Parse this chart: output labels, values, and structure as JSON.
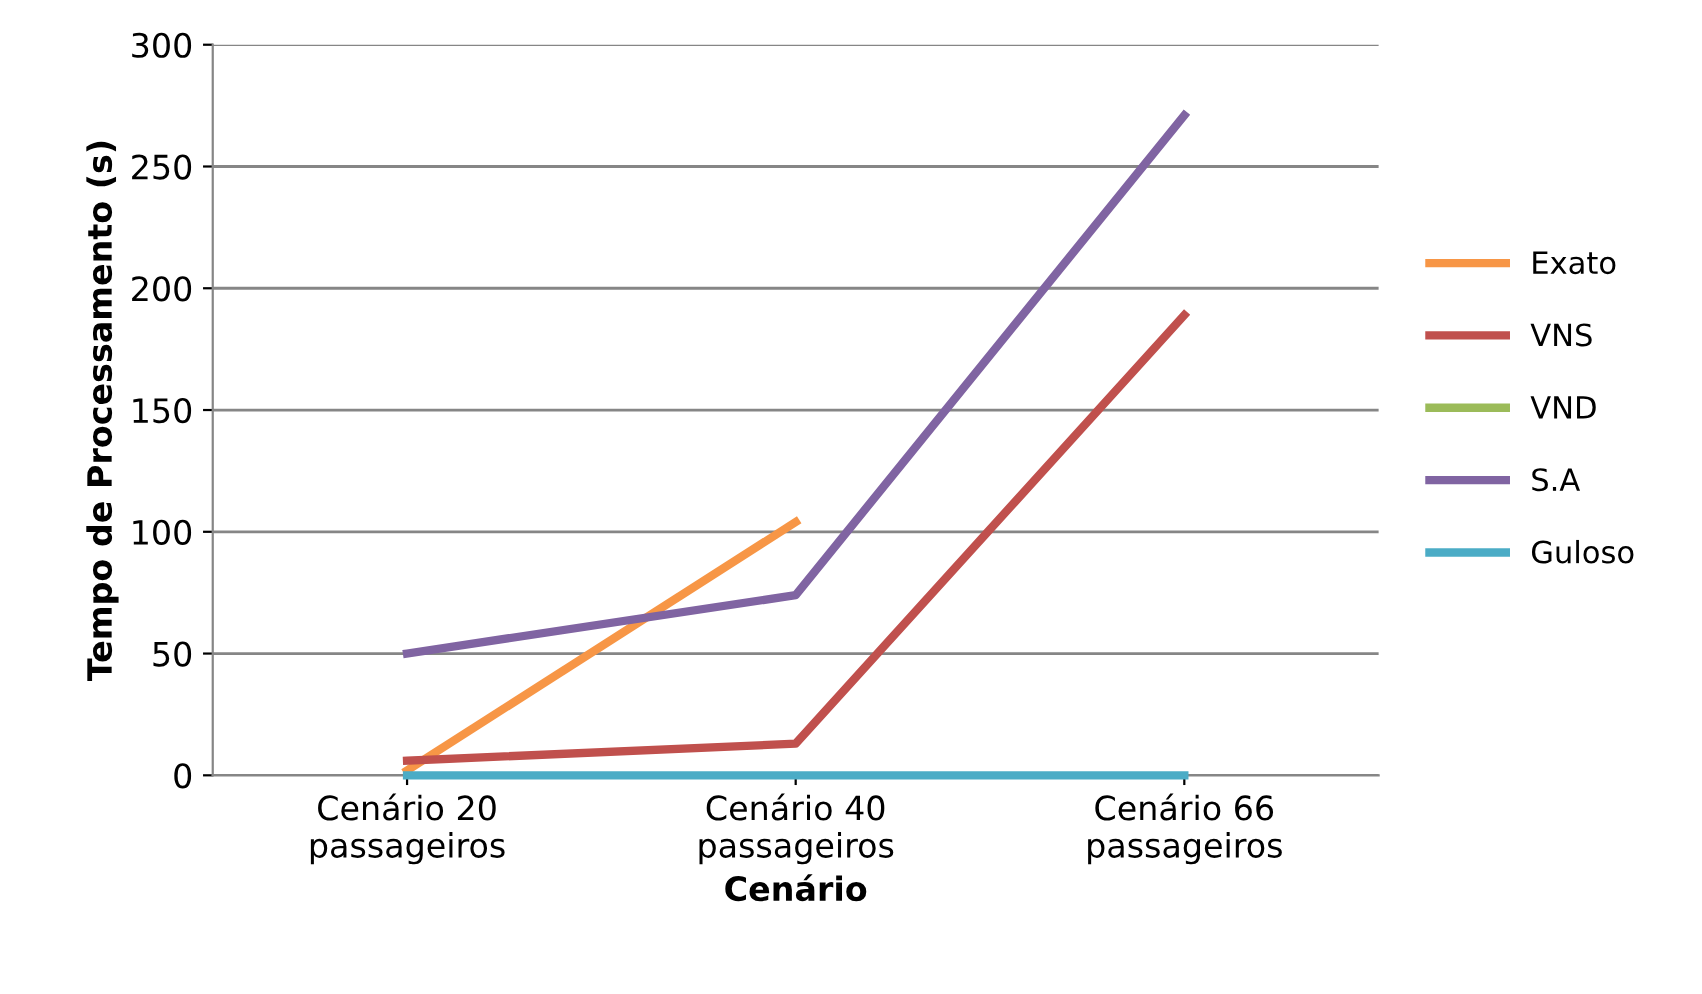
{
  "chart_data": {
    "type": "line",
    "xlabel": "Cenário",
    "ylabel": "Tempo de Processamento (s)",
    "categories": [
      "Cenário 20\npassageiros",
      "Cenário 40\npassageiros",
      "Cenário 66\npassageiros"
    ],
    "series": [
      {
        "name": "Exato",
        "color": "#f79646",
        "values": [
          2,
          104,
          null
        ]
      },
      {
        "name": "VNS",
        "color": "#c0504d",
        "values": [
          6,
          13,
          189
        ]
      },
      {
        "name": "VND",
        "color": "#9bbb59",
        "values": [
          null,
          null,
          null
        ]
      },
      {
        "name": "S.A",
        "color": "#8064a2",
        "values": [
          50,
          74,
          271
        ]
      },
      {
        "name": "Guloso",
        "color": "#4bacc6",
        "values": [
          0,
          0,
          0
        ]
      }
    ],
    "ylim": [
      0,
      300
    ],
    "yticks": [
      0,
      50,
      100,
      150,
      200,
      250,
      300
    ],
    "grid": "y",
    "legend": "right",
    "marker": "none",
    "line_style": "solid"
  }
}
